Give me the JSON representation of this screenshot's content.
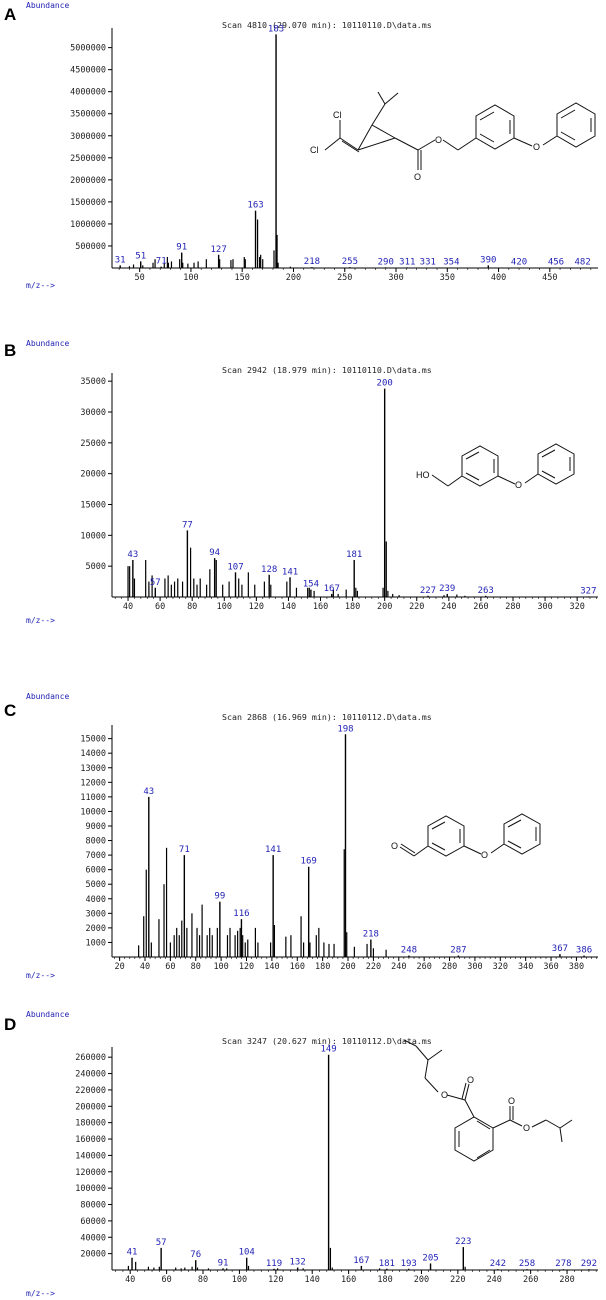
{
  "colors": {
    "axis": "#000000",
    "bar": "#000000",
    "label_blue": "#1f1fb4"
  },
  "chart_data": [
    {
      "panel": "A",
      "type": "bar",
      "abundance_label": "Abundance",
      "header": "Scan 4810 (29.070 min): 10110110.D\\data.ms",
      "mz_label": "m/z-->",
      "xlim": [
        23,
        497
      ],
      "ylim": [
        0,
        5400000
      ],
      "x_ticks": [
        50,
        100,
        150,
        200,
        250,
        300,
        350,
        400,
        450
      ],
      "y_ticks": [
        500000,
        1000000,
        1500000,
        2000000,
        2500000,
        3000000,
        3500000,
        4000000,
        4500000,
        5000000
      ],
      "labeled_peaks": [
        {
          "mz": 31,
          "label": "31",
          "value": 60000
        },
        {
          "mz": 51,
          "label": "51",
          "value": 150000
        },
        {
          "mz": 71,
          "label": "71",
          "value": 30000
        },
        {
          "mz": 91,
          "label": "91",
          "value": 350000
        },
        {
          "mz": 127,
          "label": "127",
          "value": 300000
        },
        {
          "mz": 163,
          "label": "163",
          "value": 1300000
        },
        {
          "mz": 183,
          "label": "183",
          "value": 5300000
        },
        {
          "mz": 218,
          "label": "218",
          "value": 20000
        },
        {
          "mz": 255,
          "label": "255",
          "value": 20000
        },
        {
          "mz": 290,
          "label": "290",
          "value": 15000
        },
        {
          "mz": 311,
          "label": "311",
          "value": 15000
        },
        {
          "mz": 331,
          "label": "331",
          "value": 10000
        },
        {
          "mz": 354,
          "label": "354",
          "value": 10000
        },
        {
          "mz": 390,
          "label": "390",
          "value": 60000
        },
        {
          "mz": 420,
          "label": "420",
          "value": 10000
        },
        {
          "mz": 456,
          "label": "456",
          "value": 10000
        },
        {
          "mz": 482,
          "label": "482",
          "value": 10000
        }
      ],
      "other_peaks": [
        [
          40,
          40000
        ],
        [
          44,
          80000
        ],
        [
          53,
          60000
        ],
        [
          63,
          120000
        ],
        [
          65,
          200000
        ],
        [
          74,
          100000
        ],
        [
          77,
          250000
        ],
        [
          78,
          120000
        ],
        [
          81,
          150000
        ],
        [
          89,
          200000
        ],
        [
          92,
          120000
        ],
        [
          97,
          100000
        ],
        [
          103,
          120000
        ],
        [
          107,
          150000
        ],
        [
          115,
          200000
        ],
        [
          128,
          200000
        ],
        [
          139,
          180000
        ],
        [
          141,
          200000
        ],
        [
          152,
          250000
        ],
        [
          153,
          200000
        ],
        [
          165,
          1100000
        ],
        [
          167,
          250000
        ],
        [
          168,
          300000
        ],
        [
          170,
          200000
        ],
        [
          181,
          400000
        ],
        [
          184,
          750000
        ],
        [
          185,
          120000
        ],
        [
          197,
          30000
        ]
      ],
      "molecule": {
        "atom_labels": [
          "Cl",
          "Cl",
          "O",
          "O",
          "O"
        ]
      }
    },
    {
      "panel": "B",
      "type": "bar",
      "abundance_label": "Abundance",
      "header": "Scan 2942 (18.979 min): 10110110.D\\data.ms",
      "mz_label": "m/z-->",
      "xlim": [
        30,
        333
      ],
      "ylim": [
        0,
        36000
      ],
      "x_ticks": [
        40,
        60,
        80,
        100,
        120,
        140,
        160,
        180,
        200,
        220,
        240,
        260,
        280,
        300,
        320
      ],
      "y_ticks": [
        5000,
        10000,
        15000,
        20000,
        25000,
        30000,
        35000
      ],
      "labeled_peaks": [
        {
          "mz": 43,
          "label": "43",
          "value": 6000
        },
        {
          "mz": 57,
          "label": "57",
          "value": 1500
        },
        {
          "mz": 77,
          "label": "77",
          "value": 10800
        },
        {
          "mz": 94,
          "label": "94",
          "value": 6300
        },
        {
          "mz": 107,
          "label": "107",
          "value": 4000
        },
        {
          "mz": 128,
          "label": "128",
          "value": 3600
        },
        {
          "mz": 141,
          "label": "141",
          "value": 3200
        },
        {
          "mz": 154,
          "label": "154",
          "value": 1200
        },
        {
          "mz": 167,
          "label": "167",
          "value": 500
        },
        {
          "mz": 181,
          "label": "181",
          "value": 6000
        },
        {
          "mz": 200,
          "label": "200",
          "value": 33800
        },
        {
          "mz": 227,
          "label": "227",
          "value": 200
        },
        {
          "mz": 239,
          "label": "239",
          "value": 500
        },
        {
          "mz": 263,
          "label": "263",
          "value": 200
        },
        {
          "mz": 327,
          "label": "327",
          "value": 100
        }
      ],
      "other_peaks": [
        [
          40,
          5000
        ],
        [
          41,
          5000
        ],
        [
          44,
          3000
        ],
        [
          51,
          6000
        ],
        [
          53,
          2500
        ],
        [
          55,
          3500
        ],
        [
          63,
          3000
        ],
        [
          65,
          3500
        ],
        [
          67,
          2000
        ],
        [
          69,
          2500
        ],
        [
          71,
          3000
        ],
        [
          74,
          2500
        ],
        [
          79,
          8000
        ],
        [
          81,
          3000
        ],
        [
          83,
          2000
        ],
        [
          85,
          3000
        ],
        [
          89,
          2000
        ],
        [
          91,
          4500
        ],
        [
          95,
          6000
        ],
        [
          99,
          2000
        ],
        [
          103,
          2500
        ],
        [
          109,
          3000
        ],
        [
          111,
          2000
        ],
        [
          115,
          4000
        ],
        [
          119,
          2000
        ],
        [
          125,
          2500
        ],
        [
          129,
          2000
        ],
        [
          139,
          2500
        ],
        [
          145,
          1500
        ],
        [
          152,
          1500
        ],
        [
          153,
          1500
        ],
        [
          156,
          1000
        ],
        [
          168,
          1200
        ],
        [
          171,
          500
        ],
        [
          176,
          1200
        ],
        [
          182,
          1500
        ],
        [
          183,
          1000
        ],
        [
          199,
          1500
        ],
        [
          201,
          9000
        ],
        [
          202,
          1000
        ],
        [
          205,
          500
        ],
        [
          209,
          300
        ],
        [
          237,
          300
        ],
        [
          245,
          400
        ],
        [
          250,
          200
        ]
      ],
      "molecule": {
        "atom_labels": [
          "HO",
          "O"
        ]
      }
    },
    {
      "panel": "C",
      "type": "bar",
      "abundance_label": "Abundance",
      "header": "Scan 2868 (16.969 min): 10110112.D\\data.ms",
      "mz_label": "m/z-->",
      "xlim": [
        14,
        397
      ],
      "ylim": [
        0,
        15800
      ],
      "x_ticks": [
        20,
        40,
        60,
        80,
        100,
        120,
        140,
        160,
        180,
        200,
        220,
        240,
        260,
        280,
        300,
        320,
        340,
        360,
        380
      ],
      "y_ticks": [
        1000,
        2000,
        3000,
        4000,
        5000,
        6000,
        7000,
        8000,
        9000,
        10000,
        11000,
        12000,
        13000,
        14000,
        15000
      ],
      "labeled_peaks": [
        {
          "mz": 43,
          "label": "43",
          "value": 11000
        },
        {
          "mz": 71,
          "label": "71",
          "value": 7000
        },
        {
          "mz": 99,
          "label": "99",
          "value": 3800
        },
        {
          "mz": 116,
          "label": "116",
          "value": 2600
        },
        {
          "mz": 141,
          "label": "141",
          "value": 7000
        },
        {
          "mz": 169,
          "label": "169",
          "value": 6200
        },
        {
          "mz": 198,
          "label": "198",
          "value": 15300
        },
        {
          "mz": 218,
          "label": "218",
          "value": 1200
        },
        {
          "mz": 248,
          "label": "248",
          "value": 100
        },
        {
          "mz": 287,
          "label": "287",
          "value": 100
        },
        {
          "mz": 367,
          "label": "367",
          "value": 200
        },
        {
          "mz": 386,
          "label": "386",
          "value": 100
        }
      ],
      "other_peaks": [
        [
          35,
          800
        ],
        [
          39,
          2800
        ],
        [
          41,
          6000
        ],
        [
          45,
          1000
        ],
        [
          51,
          2600
        ],
        [
          55,
          5000
        ],
        [
          57,
          7500
        ],
        [
          60,
          1000
        ],
        [
          63,
          1500
        ],
        [
          65,
          2000
        ],
        [
          67,
          1500
        ],
        [
          69,
          2500
        ],
        [
          73,
          2000
        ],
        [
          77,
          3000
        ],
        [
          81,
          2000
        ],
        [
          83,
          1500
        ],
        [
          85,
          3600
        ],
        [
          89,
          1500
        ],
        [
          91,
          2000
        ],
        [
          93,
          1500
        ],
        [
          97,
          2000
        ],
        [
          105,
          1500
        ],
        [
          107,
          2000
        ],
        [
          111,
          1500
        ],
        [
          113,
          1800
        ],
        [
          115,
          2000
        ],
        [
          117,
          1500
        ],
        [
          119,
          1000
        ],
        [
          121,
          1200
        ],
        [
          127,
          2000
        ],
        [
          129,
          1000
        ],
        [
          139,
          1000
        ],
        [
          142,
          2200
        ],
        [
          151,
          1400
        ],
        [
          155,
          1500
        ],
        [
          163,
          2800
        ],
        [
          165,
          1000
        ],
        [
          170,
          1000
        ],
        [
          175,
          1500
        ],
        [
          177,
          2000
        ],
        [
          181,
          1000
        ],
        [
          185,
          900
        ],
        [
          189,
          900
        ],
        [
          197,
          7400
        ],
        [
          199,
          1700
        ],
        [
          205,
          700
        ],
        [
          215,
          900
        ],
        [
          220,
          600
        ],
        [
          230,
          500
        ]
      ],
      "molecule": {
        "atom_labels": [
          "O",
          "O"
        ]
      }
    },
    {
      "panel": "D",
      "type": "bar",
      "abundance_label": "Abundance",
      "header": "Scan 3247 (20.627 min): 10110112.D\\data.ms",
      "mz_label": "m/z-->",
      "xlim": [
        30,
        297
      ],
      "ylim": [
        0,
        270000
      ],
      "x_ticks": [
        40,
        60,
        80,
        100,
        120,
        140,
        160,
        180,
        200,
        220,
        240,
        260,
        280
      ],
      "y_ticks": [
        20000,
        40000,
        60000,
        80000,
        100000,
        120000,
        140000,
        160000,
        180000,
        200000,
        220000,
        240000,
        260000
      ],
      "labeled_peaks": [
        {
          "mz": 41,
          "label": "41",
          "value": 15000
        },
        {
          "mz": 57,
          "label": "57",
          "value": 27000
        },
        {
          "mz": 76,
          "label": "76",
          "value": 12000
        },
        {
          "mz": 91,
          "label": "91",
          "value": 2000
        },
        {
          "mz": 104,
          "label": "104",
          "value": 15000
        },
        {
          "mz": 119,
          "label": "119",
          "value": 1500
        },
        {
          "mz": 132,
          "label": "132",
          "value": 3000
        },
        {
          "mz": 149,
          "label": "149",
          "value": 263000
        },
        {
          "mz": 167,
          "label": "167",
          "value": 5000
        },
        {
          "mz": 181,
          "label": "181",
          "value": 1500
        },
        {
          "mz": 193,
          "label": "193",
          "value": 1500
        },
        {
          "mz": 205,
          "label": "205",
          "value": 8000
        },
        {
          "mz": 223,
          "label": "223",
          "value": 28000
        },
        {
          "mz": 242,
          "label": "242",
          "value": 1000
        },
        {
          "mz": 258,
          "label": "258",
          "value": 1000
        },
        {
          "mz": 278,
          "label": "278",
          "value": 1000
        },
        {
          "mz": 292,
          "label": "292",
          "value": 1000
        }
      ],
      "other_peaks": [
        [
          39,
          5000
        ],
        [
          43,
          10000
        ],
        [
          50,
          4000
        ],
        [
          53,
          3000
        ],
        [
          56,
          4000
        ],
        [
          65,
          3000
        ],
        [
          68,
          2000
        ],
        [
          70,
          3000
        ],
        [
          74,
          4000
        ],
        [
          77,
          3000
        ],
        [
          83,
          2000
        ],
        [
          93,
          2000
        ],
        [
          105,
          5000
        ],
        [
          121,
          2000
        ],
        [
          135,
          2000
        ],
        [
          150,
          27000
        ],
        [
          151,
          3000
        ],
        [
          177,
          2000
        ],
        [
          224,
          4000
        ]
      ],
      "molecule": {
        "atom_labels": [
          "O",
          "O",
          "O",
          "O"
        ]
      }
    }
  ]
}
